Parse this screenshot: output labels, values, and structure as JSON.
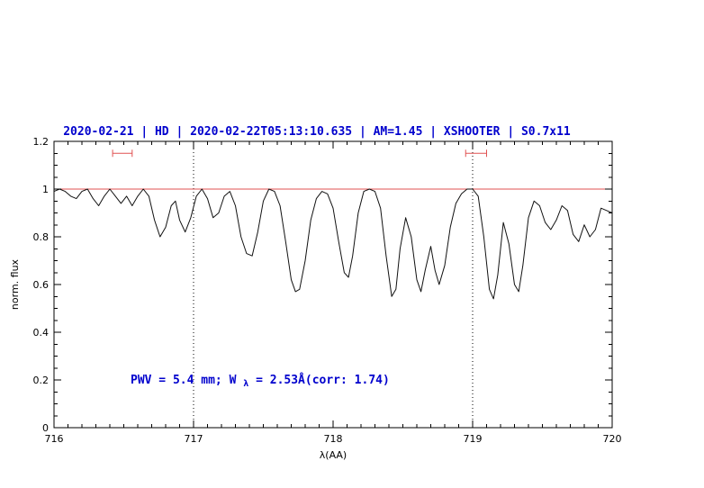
{
  "page": {
    "background": "#ffffff"
  },
  "chart_data": {
    "type": "line",
    "title": "2020-02-21 | HD | 2020-02-22T05:13:10.635 | AM=1.45 | XSHOOTER | S0.7x11",
    "xlabel": "λ(AA)",
    "ylabel": "norm. flux",
    "xlim": [
      716,
      720
    ],
    "ylim": [
      0,
      1.2
    ],
    "x_ticks": [
      716,
      717,
      718,
      719,
      720
    ],
    "x_tick_labels": [
      "716",
      "717",
      "718",
      "719",
      "720"
    ],
    "y_ticks": [
      0,
      0.2,
      0.4,
      0.6,
      0.8,
      1,
      1.2
    ],
    "y_tick_labels": [
      "0",
      "0.2",
      "0.4",
      "0.6",
      "0.8",
      "1",
      "1.2"
    ],
    "x_minor_step": 0.1,
    "y_minor_step": 0.05,
    "grid": false,
    "legend": "none",
    "dotted_vlines": [
      717,
      719
    ],
    "unity_line_y": 1.0,
    "colors": {
      "spectrum": "#111111",
      "accent_blue": "#0000cd",
      "accent_red": "#e05252"
    },
    "range_markers": [
      {
        "x1": 716.42,
        "x2": 716.56,
        "y": 1.15
      },
      {
        "x1": 718.95,
        "x2": 719.1,
        "y": 1.15
      }
    ],
    "annotation": {
      "prefix": "PWV = 5.4 mm; W",
      "sub": "λ",
      "suffix": " = 2.53Å(corr: 1.74)",
      "x": 716.55,
      "y": 0.185
    },
    "series": [
      {
        "name": "telluric spectrum",
        "points": [
          [
            716.0,
            0.99
          ],
          [
            716.04,
            1.0
          ],
          [
            716.08,
            0.99
          ],
          [
            716.12,
            0.97
          ],
          [
            716.16,
            0.96
          ],
          [
            716.2,
            0.99
          ],
          [
            716.24,
            1.0
          ],
          [
            716.28,
            0.96
          ],
          [
            716.32,
            0.93
          ],
          [
            716.36,
            0.97
          ],
          [
            716.4,
            1.0
          ],
          [
            716.44,
            0.97
          ],
          [
            716.48,
            0.94
          ],
          [
            716.52,
            0.97
          ],
          [
            716.56,
            0.93
          ],
          [
            716.6,
            0.97
          ],
          [
            716.64,
            1.0
          ],
          [
            716.68,
            0.97
          ],
          [
            716.72,
            0.87
          ],
          [
            716.76,
            0.8
          ],
          [
            716.8,
            0.84
          ],
          [
            716.84,
            0.93
          ],
          [
            716.87,
            0.95
          ],
          [
            716.9,
            0.87
          ],
          [
            716.94,
            0.82
          ],
          [
            716.98,
            0.88
          ],
          [
            717.02,
            0.97
          ],
          [
            717.06,
            1.0
          ],
          [
            717.1,
            0.96
          ],
          [
            717.14,
            0.88
          ],
          [
            717.18,
            0.9
          ],
          [
            717.22,
            0.97
          ],
          [
            717.26,
            0.99
          ],
          [
            717.3,
            0.93
          ],
          [
            717.34,
            0.8
          ],
          [
            717.38,
            0.73
          ],
          [
            717.42,
            0.72
          ],
          [
            717.46,
            0.82
          ],
          [
            717.5,
            0.95
          ],
          [
            717.54,
            1.0
          ],
          [
            717.58,
            0.99
          ],
          [
            717.62,
            0.93
          ],
          [
            717.66,
            0.78
          ],
          [
            717.7,
            0.62
          ],
          [
            717.73,
            0.57
          ],
          [
            717.76,
            0.58
          ],
          [
            717.8,
            0.7
          ],
          [
            717.84,
            0.87
          ],
          [
            717.88,
            0.96
          ],
          [
            717.92,
            0.99
          ],
          [
            717.96,
            0.98
          ],
          [
            718.0,
            0.92
          ],
          [
            718.04,
            0.78
          ],
          [
            718.08,
            0.65
          ],
          [
            718.11,
            0.63
          ],
          [
            718.14,
            0.72
          ],
          [
            718.18,
            0.9
          ],
          [
            718.22,
            0.99
          ],
          [
            718.26,
            1.0
          ],
          [
            718.3,
            0.99
          ],
          [
            718.34,
            0.92
          ],
          [
            718.38,
            0.72
          ],
          [
            718.42,
            0.55
          ],
          [
            718.45,
            0.58
          ],
          [
            718.48,
            0.75
          ],
          [
            718.52,
            0.88
          ],
          [
            718.56,
            0.8
          ],
          [
            718.6,
            0.62
          ],
          [
            718.63,
            0.57
          ],
          [
            718.66,
            0.66
          ],
          [
            718.7,
            0.76
          ],
          [
            718.73,
            0.66
          ],
          [
            718.76,
            0.6
          ],
          [
            718.8,
            0.68
          ],
          [
            718.84,
            0.84
          ],
          [
            718.88,
            0.94
          ],
          [
            718.92,
            0.98
          ],
          [
            718.96,
            1.0
          ],
          [
            719.0,
            1.0
          ],
          [
            719.04,
            0.97
          ],
          [
            719.08,
            0.8
          ],
          [
            719.12,
            0.58
          ],
          [
            719.15,
            0.54
          ],
          [
            719.18,
            0.64
          ],
          [
            719.22,
            0.86
          ],
          [
            719.26,
            0.77
          ],
          [
            719.3,
            0.6
          ],
          [
            719.33,
            0.57
          ],
          [
            719.36,
            0.68
          ],
          [
            719.4,
            0.88
          ],
          [
            719.44,
            0.95
          ],
          [
            719.48,
            0.93
          ],
          [
            719.52,
            0.86
          ],
          [
            719.56,
            0.83
          ],
          [
            719.6,
            0.87
          ],
          [
            719.64,
            0.93
          ],
          [
            719.68,
            0.91
          ],
          [
            719.72,
            0.81
          ],
          [
            719.76,
            0.78
          ],
          [
            719.8,
            0.85
          ],
          [
            719.84,
            0.8
          ],
          [
            719.88,
            0.83
          ],
          [
            719.92,
            0.92
          ],
          [
            719.96,
            0.91
          ],
          [
            720.0,
            0.9
          ]
        ]
      }
    ]
  }
}
